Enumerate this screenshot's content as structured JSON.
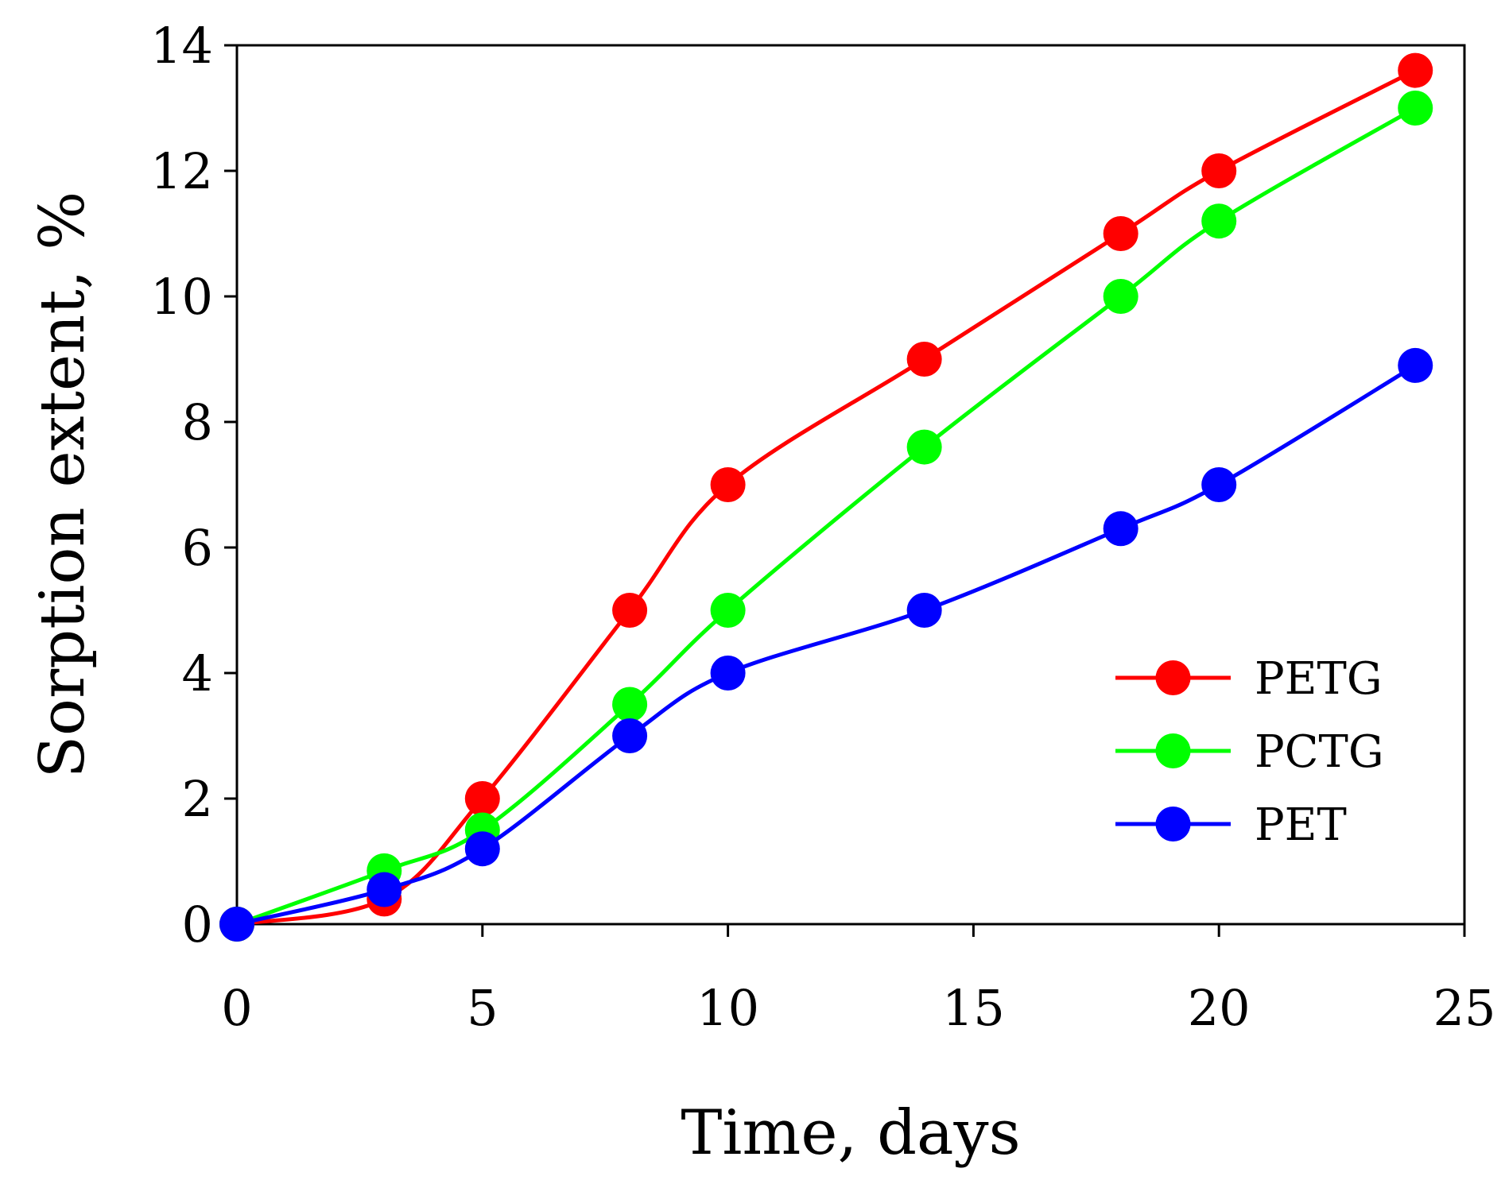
{
  "chart_data": {
    "type": "line",
    "title": "",
    "xlabel": "Time, days",
    "ylabel": "Sorption extent, %",
    "xlim": [
      0,
      25
    ],
    "ylim": [
      0,
      14
    ],
    "xticks": [
      0,
      5,
      10,
      15,
      20,
      25
    ],
    "yticks": [
      0,
      2,
      4,
      6,
      8,
      10,
      12,
      14
    ],
    "grid": false,
    "legend_position": "bottom-right",
    "x": [
      0,
      3,
      5,
      8,
      10,
      14,
      18,
      20,
      24
    ],
    "series": [
      {
        "name": "PETG",
        "color": "#ff0000",
        "values": [
          0.0,
          0.4,
          2.0,
          5.0,
          7.0,
          9.0,
          11.0,
          12.0,
          13.6
        ]
      },
      {
        "name": "PCTG",
        "color": "#00ff00",
        "values": [
          0.0,
          0.85,
          1.5,
          3.5,
          5.0,
          7.6,
          10.0,
          11.2,
          13.0
        ]
      },
      {
        "name": "PET",
        "color": "#0000ff",
        "values": [
          0.0,
          0.55,
          1.2,
          3.0,
          4.0,
          5.0,
          6.3,
          7.0,
          8.9
        ]
      }
    ]
  }
}
